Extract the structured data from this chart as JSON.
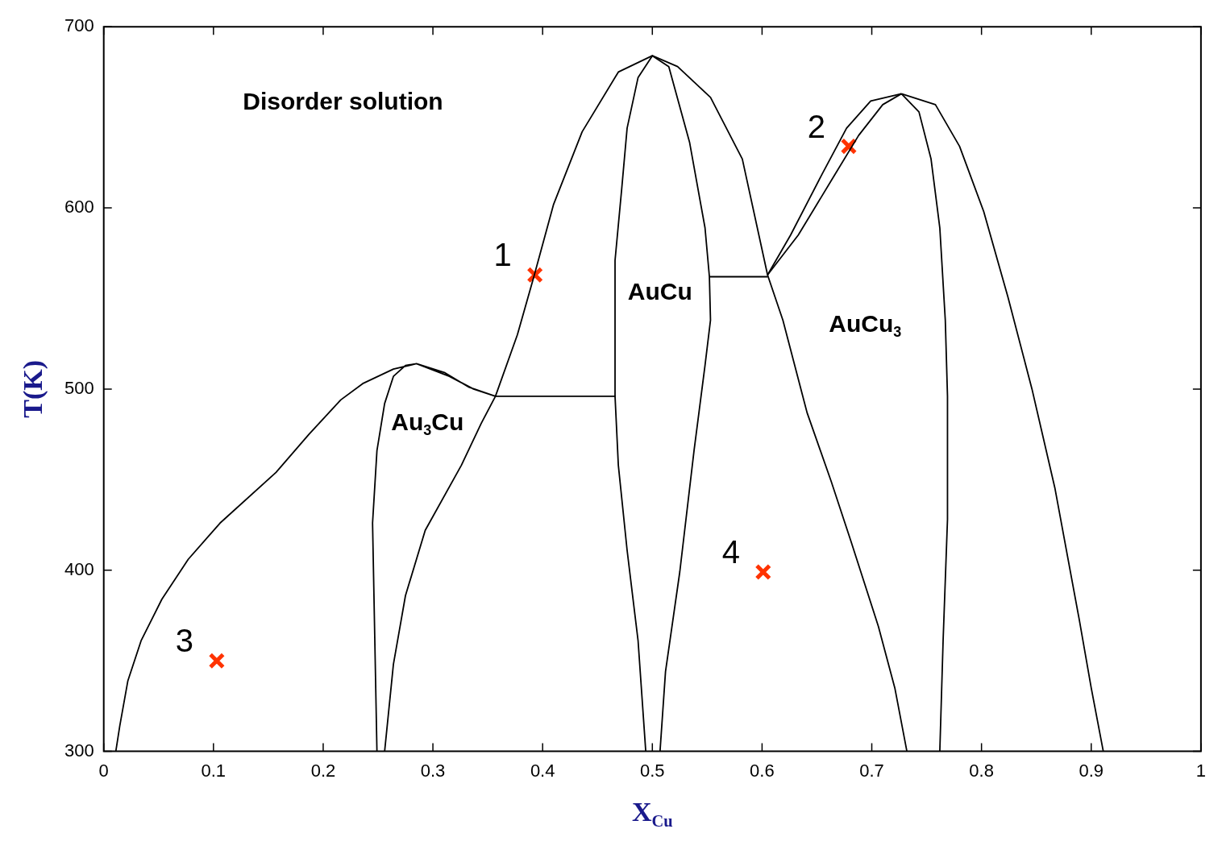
{
  "chart_data": {
    "type": "line",
    "xlabel": "X$_{Cu}$",
    "ylabel": "T(K)",
    "xlim": [
      0,
      1
    ],
    "ylim": [
      300,
      700
    ],
    "xticks": [
      0,
      0.1,
      0.2,
      0.3,
      0.4,
      0.5,
      0.6,
      0.7,
      0.8,
      0.9,
      1
    ],
    "yticks": [
      300,
      400,
      500,
      600,
      700
    ],
    "grid": false,
    "legend": false,
    "line_style": "solid",
    "series": [
      {
        "color": "#000000",
        "x": [
          0.011,
          0.0146,
          0.022,
          0.034,
          0.053,
          0.077,
          0.106,
          0.157,
          0.187,
          0.216,
          0.236,
          0.264,
          0.285,
          0.315,
          0.337,
          0.357,
          0.333,
          0.311,
          0.285,
          0.275,
          0.264,
          0.256,
          0.249,
          0.245,
          0.249
        ],
        "values": [
          300,
          314,
          339,
          361,
          384,
          406,
          426,
          454,
          475,
          494,
          503,
          511,
          514,
          507,
          500,
          496,
          501,
          509,
          514,
          513,
          507,
          492,
          466,
          426,
          300
        ]
      },
      {
        "color": "#000000",
        "x": [
          0.256,
          0.264,
          0.275,
          0.293,
          0.326,
          0.344,
          0.357,
          0.377,
          0.392,
          0.41,
          0.436,
          0.469,
          0.5,
          0.523,
          0.553,
          0.582,
          0.605,
          0.619,
          0.641,
          0.663,
          0.681,
          0.706,
          0.721,
          0.732
        ],
        "values": [
          300,
          348,
          386,
          422,
          458,
          481,
          496,
          530,
          562,
          602,
          642,
          675,
          684,
          678,
          661,
          627,
          563,
          538,
          487,
          449,
          416,
          369,
          335,
          300
        ]
      },
      {
        "color": "#000000",
        "x": [
          0.357,
          0.466
        ],
        "values": [
          496,
          496
        ]
      },
      {
        "color": "#000000",
        "x": [
          0.494,
          0.487,
          0.477,
          0.469,
          0.466,
          0.466,
          0.472,
          0.477,
          0.487,
          0.5,
          0.515,
          0.534,
          0.548,
          0.552,
          0.553,
          0.548,
          0.538,
          0.525,
          0.512,
          0.507
        ],
        "values": [
          300,
          361,
          411,
          458,
          496,
          571,
          610,
          644,
          672,
          684,
          678,
          636,
          589,
          562,
          538,
          513,
          466,
          399,
          344,
          300
        ]
      },
      {
        "color": "#000000",
        "x": [
          0.552,
          0.605
        ],
        "values": [
          562,
          562
        ]
      },
      {
        "color": "#000000",
        "x": [
          0.605,
          0.626,
          0.655,
          0.677,
          0.699,
          0.727
        ],
        "values": [
          563,
          585,
          619,
          644,
          659,
          663
        ]
      },
      {
        "color": "#000000",
        "x": [
          0.605,
          0.633,
          0.663,
          0.688,
          0.71,
          0.727
        ],
        "values": [
          563,
          585,
          615,
          640,
          657,
          663
        ]
      },
      {
        "color": "#000000",
        "x": [
          0.727,
          0.743,
          0.754,
          0.762,
          0.767,
          0.769,
          0.769,
          0.765,
          0.762
        ],
        "values": [
          663,
          653,
          627,
          589,
          538,
          496,
          428,
          361,
          300
        ]
      },
      {
        "color": "#000000",
        "x": [
          0.727,
          0.758,
          0.78,
          0.802,
          0.824,
          0.846,
          0.867,
          0.889,
          0.9,
          0.911
        ],
        "values": [
          663,
          657,
          634,
          598,
          551,
          500,
          445,
          373,
          335,
          300
        ]
      },
      {
        "type": "scatter",
        "marker": "cross",
        "color": "#ff3300",
        "x": [
          0.393,
          0.679,
          0.103,
          0.601
        ],
        "values": [
          563,
          634,
          350,
          399
        ]
      }
    ],
    "annotations": [
      "Disorder solution",
      "Au$_{3}$Cu",
      "AuCu",
      "AuCu$_{3}$",
      {
        "text": "1",
        "x": 0.393,
        "y": 563
      },
      {
        "text": "2",
        "x": 0.679,
        "y": 634
      },
      {
        "text": "3",
        "x": 0.103,
        "y": 350
      },
      {
        "text": "4",
        "x": 0.601,
        "y": 399
      }
    ]
  }
}
